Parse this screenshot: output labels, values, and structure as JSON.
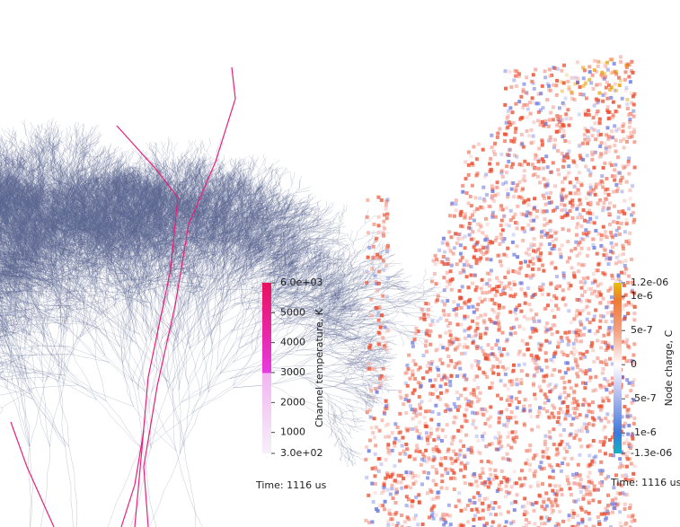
{
  "panels": [
    {
      "colorbar": {
        "title": "Channel temperature, K",
        "lim": [
          300,
          6000
        ],
        "ticks": [
          {
            "value": 6000,
            "label": "6.0e+03"
          },
          5000,
          4000,
          3000,
          2000,
          1000,
          {
            "value": 300,
            "label": "3.0e+02"
          }
        ]
      },
      "time": "Time: 1116 us"
    },
    {
      "colorbar": {
        "title": "Node charge, C",
        "lim": [
          -1.3e-06,
          1.2e-06
        ],
        "ticks": [
          {
            "value": 1.2e-06,
            "label": "1.2e-06"
          },
          {
            "value": 1e-06,
            "label": "1e-6"
          },
          {
            "value": 5e-07,
            "label": "5e-7"
          },
          0,
          {
            "value": -5e-07,
            "label": "-5e-7"
          },
          {
            "value": -1e-06,
            "label": "-1e-6"
          },
          {
            "value": -1.3e-06,
            "label": "-1.3e-06"
          }
        ]
      },
      "time": "Time: 1116 us"
    }
  ]
}
